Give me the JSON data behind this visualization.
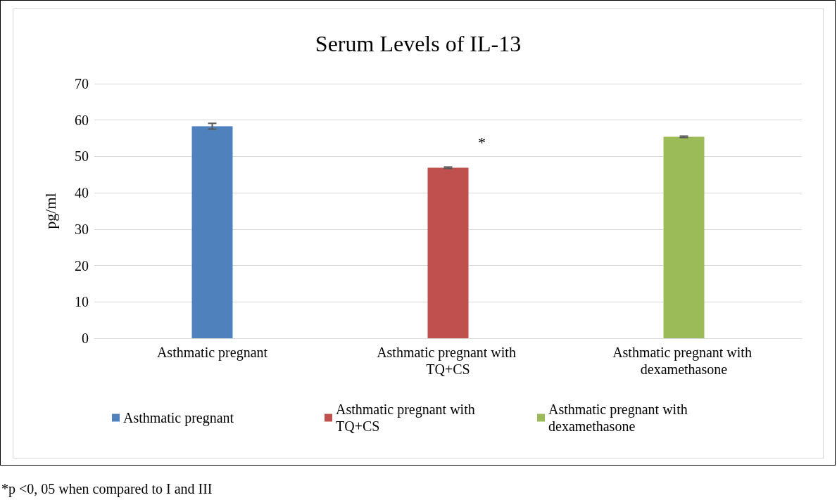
{
  "chart_data": {
    "type": "bar",
    "title": "Serum Levels of IL-13",
    "ylabel": "pg/ml",
    "categories": [
      "Asthmatic pregnant",
      "Asthmatic pregnant with TQ+CS",
      "Asthmatic pregnant with dexamethasone"
    ],
    "series": [
      {
        "name": "Asthmatic pregnant",
        "color": "#4f81bd",
        "values": [
          58.3,
          null,
          null
        ],
        "errors": [
          0.8,
          null,
          null
        ]
      },
      {
        "name": "Asthmatic pregnant with TQ+CS",
        "color": "#c0504d",
        "values": [
          null,
          46.9,
          null
        ],
        "errors": [
          null,
          0.2,
          null
        ]
      },
      {
        "name": "Asthmatic pregnant with dexamethasone",
        "color": "#9bbb59",
        "values": [
          null,
          null,
          55.4
        ],
        "errors": [
          null,
          null,
          0.2
        ]
      }
    ],
    "ylim": [
      0,
      70
    ],
    "yticks": [
      0,
      10,
      20,
      30,
      40,
      50,
      60,
      70
    ],
    "grid": "y",
    "legend": "bottom",
    "annotations": [
      "*",
      "*p <0, 05 when compared to I and III"
    ]
  }
}
